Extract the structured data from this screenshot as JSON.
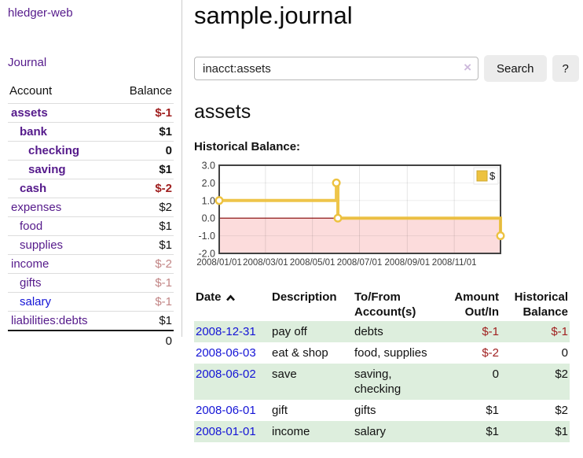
{
  "app": {
    "title": "hledger-web"
  },
  "nav": {
    "journal": "Journal"
  },
  "colors": {
    "purple_link": "#551a8b",
    "blue_link": "#1414d6",
    "negative_strong": "#a02020",
    "negative_soft": "#c28585",
    "row_highlight": "#ddeedd",
    "chart_line": "#EDC240",
    "chart_negative_region": "#fcdcdc",
    "chart_zero_line": "#800000",
    "chart_border": "#424242"
  },
  "sidebar": {
    "accounts_header": {
      "account": "Account",
      "balance": "Balance"
    },
    "accounts": [
      {
        "account": "assets",
        "balance": "$-1",
        "indent": 1,
        "bold": true,
        "tone": "neg-strong"
      },
      {
        "account": "bank",
        "balance": "$1",
        "indent": 2,
        "bold": true,
        "tone": ""
      },
      {
        "account": "checking",
        "balance": "0",
        "indent": 3,
        "bold": true,
        "tone": ""
      },
      {
        "account": "saving",
        "balance": "$1",
        "indent": 3,
        "bold": true,
        "tone": ""
      },
      {
        "account": "cash",
        "balance": "$-2",
        "indent": 2,
        "bold": true,
        "tone": "neg-strong"
      },
      {
        "account": "expenses",
        "balance": "$2",
        "indent": 1,
        "bold": false,
        "tone": ""
      },
      {
        "account": "food",
        "balance": "$1",
        "indent": 2,
        "bold": false,
        "tone": ""
      },
      {
        "account": "supplies",
        "balance": "$1",
        "indent": 2,
        "bold": false,
        "tone": ""
      },
      {
        "account": "income",
        "balance": "$-2",
        "indent": 1,
        "bold": false,
        "tone": "neg-soft"
      },
      {
        "account": "gifts",
        "balance": "$-1",
        "indent": 2,
        "bold": false,
        "tone": "neg-soft"
      },
      {
        "account": "salary",
        "balance": "$-1",
        "indent": 2,
        "bold": false,
        "tone": "neg-soft",
        "link": "blue"
      },
      {
        "account": "liabilities:debts",
        "balance": "$1",
        "indent": 1,
        "bold": false,
        "tone": ""
      }
    ],
    "total": "0"
  },
  "main": {
    "title": "sample.journal",
    "search": {
      "value": "inacct:assets",
      "clear": "×",
      "submit": "Search",
      "help": "?"
    },
    "account_heading": "assets",
    "chart_heading": "Historical Balance:"
  },
  "chart_data": {
    "type": "line",
    "title": "Historical Balance",
    "step": true,
    "series": [
      {
        "name": "$",
        "color": "#EDC240",
        "points": [
          [
            "2008-01-01",
            1.0
          ],
          [
            "2008-06-01",
            2.0
          ],
          [
            "2008-06-03",
            0.0
          ],
          [
            "2008-12-31",
            -1.0
          ]
        ]
      }
    ],
    "ylim": [
      -2.0,
      3.0
    ],
    "yticks": [
      3.0,
      2.0,
      1.0,
      0.0,
      -1.0,
      -2.0
    ],
    "xticks": [
      "2008/01/01",
      "2008/03/01",
      "2008/05/01",
      "2008/07/01",
      "2008/09/01",
      "2008/11/01"
    ],
    "legend": {
      "label": "$",
      "position": "top-right"
    },
    "grid": true,
    "negative_region_shaded": true
  },
  "register": {
    "sort_icon": "chevron-up",
    "headers": {
      "date": "Date",
      "description": "Description",
      "accounts": "To/From Account(s)",
      "amount": "Amount Out/In",
      "balance": "Historical Balance"
    },
    "rows": [
      {
        "date": "2008-12-31",
        "description": "pay off",
        "accounts": "debts",
        "amount": "$-1",
        "balance": "$-1",
        "amount_neg": true,
        "balance_neg": true,
        "highlight": true
      },
      {
        "date": "2008-06-03",
        "description": "eat & shop",
        "accounts": "food, supplies",
        "amount": "$-2",
        "balance": "0",
        "amount_neg": true,
        "balance_neg": false,
        "highlight": false
      },
      {
        "date": "2008-06-02",
        "description": "save",
        "accounts": "saving, checking",
        "amount": "0",
        "balance": "$2",
        "amount_neg": false,
        "balance_neg": false,
        "highlight": true
      },
      {
        "date": "2008-06-01",
        "description": "gift",
        "accounts": "gifts",
        "amount": "$1",
        "balance": "$2",
        "amount_neg": false,
        "balance_neg": false,
        "highlight": false
      },
      {
        "date": "2008-01-01",
        "description": "income",
        "accounts": "salary",
        "amount": "$1",
        "balance": "$1",
        "amount_neg": false,
        "balance_neg": false,
        "highlight": true
      }
    ]
  }
}
